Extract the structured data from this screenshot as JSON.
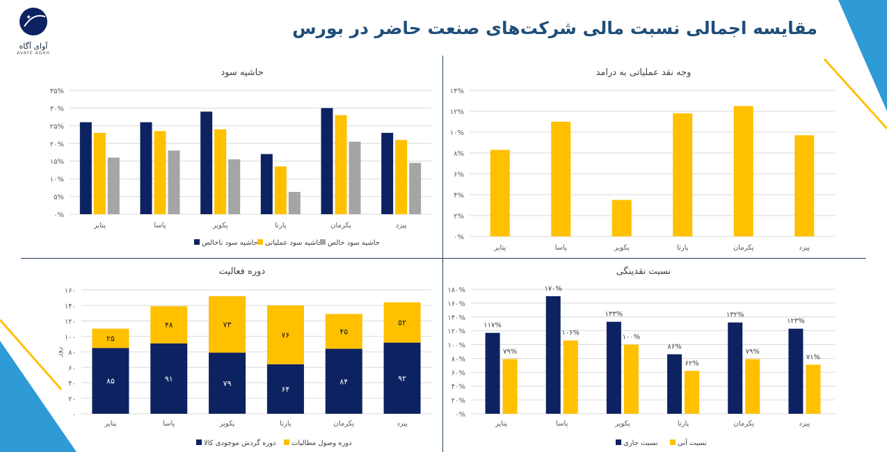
{
  "page": {
    "title": "مقایسه اجمالی نسبت مالی شرکت‌های صنعت حاضر در بورس",
    "logo_text_fa": "آوای آگاه",
    "logo_text_en": "AVAYE AGAH"
  },
  "colors": {
    "navy": "#0d2260",
    "yellow": "#ffc000",
    "gray": "#a5a5a5",
    "title_blue": "#1f4e79",
    "accent_blue": "#2e9bd6"
  },
  "chart_data": [
    {
      "type": "bar",
      "title": "حاشیه سود",
      "categories": [
        "پتایر",
        "پاسا",
        "پکویر",
        "پارتا",
        "پکرمان",
        "پیزد"
      ],
      "series": [
        {
          "name": "حاشیه سود ناخالص",
          "values": [
            26,
            26,
            29,
            17,
            30,
            23
          ]
        },
        {
          "name": "حاشیه سود عملیاتی",
          "values": [
            23,
            23.5,
            24,
            13.5,
            28,
            21
          ]
        },
        {
          "name": "حاشیه سود خالص",
          "values": [
            16,
            18,
            15.5,
            6.3,
            20.5,
            14.5
          ]
        }
      ],
      "ylim": [
        0,
        35
      ],
      "yticks": [
        "۰%",
        "۵%",
        "۱۰%",
        "۱۵%",
        "۲۰%",
        "۲۵%",
        "۳۰%",
        "۳۵%"
      ],
      "grid": true,
      "legend": "bottom"
    },
    {
      "type": "bar",
      "title": "وجه نقد عملیاتی به درامد",
      "categories": [
        "پتایر",
        "پاسا",
        "پکویر",
        "پارتا",
        "پکرمان",
        "پیزد"
      ],
      "series": [
        {
          "values": [
            8.3,
            11,
            3.5,
            11.8,
            12.5,
            9.7
          ]
        }
      ],
      "ylim": [
        0,
        14
      ],
      "yticks": [
        "۰%",
        "۲%",
        "۴%",
        "۶%",
        "۸%",
        "۱۰%",
        "۱۲%",
        "۱۴%"
      ],
      "grid": true
    },
    {
      "type": "bar",
      "stacked": true,
      "title": "دوره فعالیت",
      "ylabel": "روز",
      "categories": [
        "پتایر",
        "پاسا",
        "پکویر",
        "پارتا",
        "پکرمان",
        "پیزد"
      ],
      "series": [
        {
          "name": "دوره گردش موجودی کالا",
          "values": [
            85,
            91,
            79,
            64,
            84,
            92
          ],
          "labels": [
            "۸۵",
            "۹۱",
            "۷۹",
            "۶۴",
            "۸۴",
            "۹۲"
          ]
        },
        {
          "name": "دوره وصول مطالبات",
          "values": [
            25,
            48,
            73,
            76,
            45,
            52
          ],
          "labels": [
            "۲۵",
            "۴۸",
            "۷۳",
            "۷۶",
            "۴۵",
            "۵۲"
          ]
        }
      ],
      "ylim": [
        0,
        160
      ],
      "yticks": [
        "۰",
        "۲۰",
        "۴۰",
        "۶۰",
        "۸۰",
        "۱۰۰",
        "۱۲۰",
        "۱۴۰",
        "۱۶۰"
      ],
      "grid": true,
      "legend": "bottom"
    },
    {
      "type": "bar",
      "title": "نسبت نقدینگی",
      "categories": [
        "پتایر",
        "پاسا",
        "پکویر",
        "پارتا",
        "پکرمان",
        "پیزد"
      ],
      "series": [
        {
          "name": "نسبت جاری",
          "values": [
            117,
            170,
            133,
            86,
            132,
            123
          ],
          "labels": [
            "۱۱۷%",
            "۱۷۰%",
            "۱۳۳%",
            "۸۶%",
            "۱۳۲%",
            "۱۲۳%"
          ]
        },
        {
          "name": "نسبت آنی",
          "values": [
            79,
            106,
            100,
            62,
            79,
            71
          ],
          "labels": [
            "۷۹%",
            "۱۰۶%",
            "۱۰۰%",
            "۶۲%",
            "۷۹%",
            "۷۱%"
          ]
        }
      ],
      "ylim": [
        0,
        180
      ],
      "yticks": [
        "۰%",
        "۲۰%",
        "۴۰%",
        "۶۰%",
        "۸۰%",
        "۱۰۰%",
        "۱۲۰%",
        "۱۴۰%",
        "۱۶۰%",
        "۱۸۰%"
      ],
      "grid": true,
      "legend": "bottom"
    }
  ]
}
